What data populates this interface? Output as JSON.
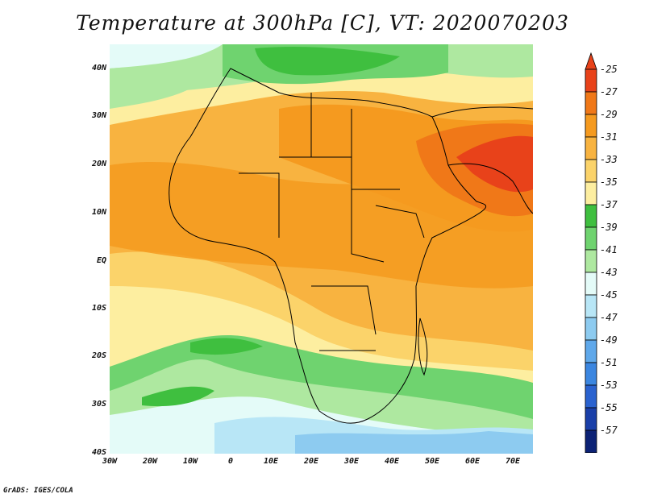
{
  "title": "Temperature at 300hPa [C], VT: 2020070203",
  "map": {
    "lat_labels": [
      "40N",
      "30N",
      "20N",
      "10N",
      "EQ",
      "10S",
      "20S",
      "30S",
      "40S"
    ],
    "lon_labels": [
      "30W",
      "20W",
      "10W",
      "0",
      "10E",
      "20E",
      "30E",
      "40E",
      "50E",
      "60E",
      "70E"
    ]
  },
  "colorbar": {
    "labels": [
      "-25",
      "-27",
      "-29",
      "-31",
      "-33",
      "-35",
      "-37",
      "-39",
      "-41",
      "-43",
      "-45",
      "-47",
      "-49",
      "-51",
      "-53",
      "-55",
      "-57"
    ],
    "colors": [
      "#e8421a",
      "#f07818",
      "#f59a1f",
      "#f8b340",
      "#fbd36a",
      "#fdeea0",
      "#3fbf3f",
      "#6fd36f",
      "#aee8a0",
      "#e4fbf8",
      "#b8e6f6",
      "#8dcbf0",
      "#5fa8ea",
      "#3b86e0",
      "#2a62cf",
      "#1a3fa8",
      "#0c2275"
    ],
    "over_color": "#e8421a",
    "under_color": "#e0d7f5"
  },
  "footer": "GrADS: IGES/COLA"
}
